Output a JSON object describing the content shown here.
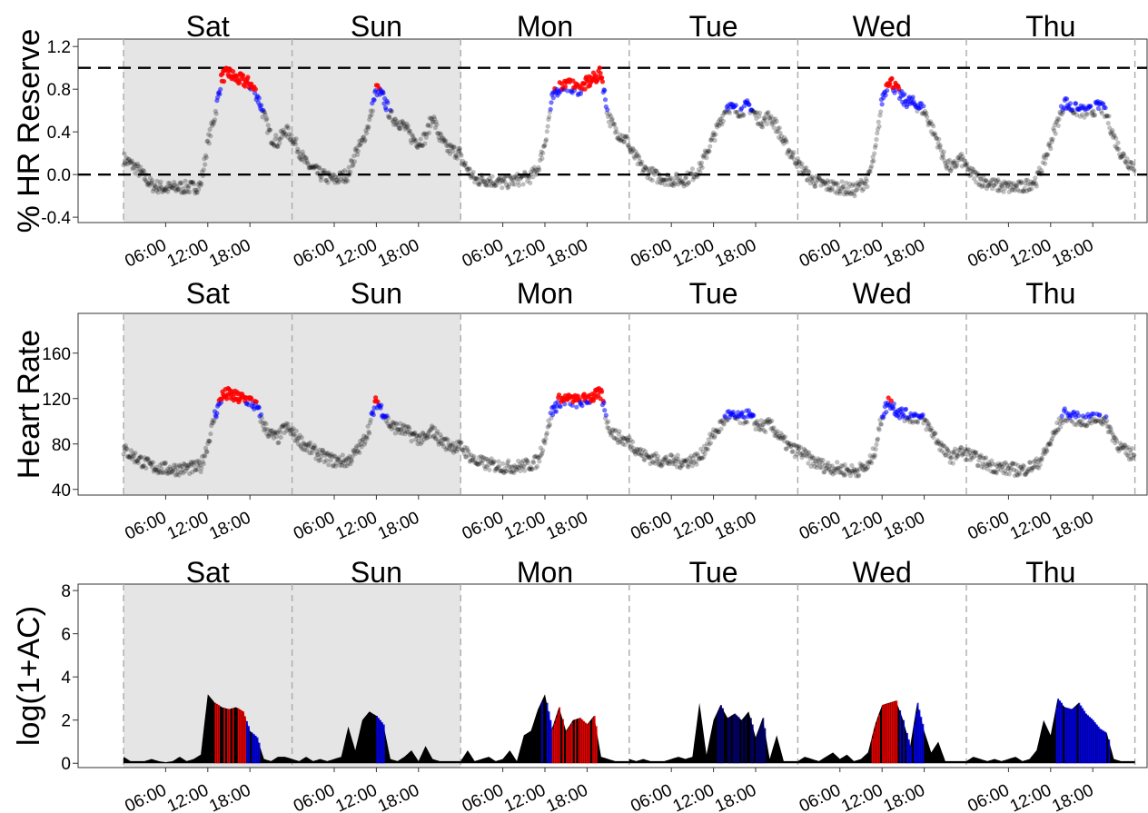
{
  "colors": {
    "weekend_shade": "#e5e5e5",
    "points_low": "#000000",
    "points_mid": "#0000ff",
    "points_high": "#ff0000",
    "day_divider": "#aaaaaa"
  },
  "days": [
    "Sat",
    "Sun",
    "Mon",
    "Tue",
    "Wed",
    "Thu"
  ],
  "weekend_days": [
    "Sat",
    "Sun"
  ],
  "time_ticks": [
    "06:00",
    "12:00",
    "18:00"
  ],
  "chart_data": [
    {
      "type": "scatter",
      "ylabel": "% HR Reserve",
      "ylim": [
        -0.45,
        1.27
      ],
      "yticks": [
        "-0.4",
        "0.0",
        "0.4",
        "0.8",
        "1.2"
      ],
      "ytick_values": [
        -0.4,
        0.0,
        0.4,
        0.8,
        1.2
      ],
      "reference_lines": [
        0.0,
        1.0
      ],
      "color_thresholds": {
        "mid": 0.6,
        "high": 0.8
      },
      "series": [
        {
          "day": "Sat",
          "x_hours": [
            0,
            2,
            4,
            6,
            8,
            10,
            11,
            12,
            13,
            14,
            15,
            16,
            17,
            18,
            19,
            20,
            21,
            22,
            23,
            24
          ],
          "y": [
            0.15,
            0.05,
            -0.1,
            -0.13,
            -0.12,
            -0.12,
            -0.1,
            0.3,
            0.55,
            0.92,
            0.95,
            0.9,
            0.88,
            0.85,
            0.75,
            0.55,
            0.35,
            0.3,
            0.42,
            0.35
          ]
        },
        {
          "day": "Sun",
          "x_hours": [
            0,
            2,
            4,
            6,
            8,
            9,
            10,
            11,
            12,
            13,
            14,
            15,
            16,
            17,
            18,
            19,
            20,
            21,
            22,
            23,
            24
          ],
          "y": [
            0.35,
            0.1,
            0.0,
            -0.05,
            0.0,
            0.2,
            0.3,
            0.5,
            0.8,
            0.72,
            0.55,
            0.5,
            0.45,
            0.35,
            0.3,
            0.35,
            0.55,
            0.35,
            0.25,
            0.22,
            0.2
          ]
        },
        {
          "day": "Mon",
          "x_hours": [
            0,
            2,
            4,
            6,
            8,
            10,
            11,
            12,
            13,
            14,
            15,
            16,
            17,
            18,
            19,
            20,
            21,
            22,
            23,
            24
          ],
          "y": [
            0.15,
            -0.05,
            -0.05,
            -0.08,
            -0.05,
            -0.02,
            0.05,
            0.3,
            0.7,
            0.82,
            0.85,
            0.82,
            0.8,
            0.86,
            0.9,
            0.95,
            0.55,
            0.42,
            0.35,
            0.3
          ]
        },
        {
          "day": "Tue",
          "x_hours": [
            0,
            2,
            4,
            6,
            8,
            10,
            11,
            12,
            13,
            14,
            15,
            16,
            17,
            18,
            19,
            20,
            21,
            22,
            23,
            24
          ],
          "y": [
            0.25,
            0.05,
            -0.02,
            -0.05,
            -0.05,
            0.05,
            0.2,
            0.35,
            0.5,
            0.65,
            0.6,
            0.6,
            0.65,
            0.55,
            0.5,
            0.55,
            0.45,
            0.3,
            0.2,
            0.12
          ]
        },
        {
          "day": "Wed",
          "x_hours": [
            0,
            2,
            4,
            6,
            8,
            10,
            11,
            12,
            13,
            14,
            15,
            16,
            17,
            18,
            19,
            20,
            21,
            22,
            23,
            24
          ],
          "y": [
            0.1,
            -0.05,
            -0.1,
            -0.12,
            -0.15,
            -0.05,
            0.2,
            0.7,
            0.9,
            0.8,
            0.7,
            0.68,
            0.65,
            0.6,
            0.45,
            0.3,
            0.12,
            0.05,
            0.15,
            0.1
          ]
        },
        {
          "day": "Thu",
          "x_hours": [
            0,
            2,
            4,
            6,
            8,
            10,
            11,
            12,
            13,
            14,
            15,
            16,
            17,
            18,
            19,
            20,
            21,
            22,
            23,
            24
          ],
          "y": [
            0.05,
            -0.05,
            -0.1,
            -0.12,
            -0.12,
            -0.05,
            0.1,
            0.3,
            0.5,
            0.68,
            0.62,
            0.6,
            0.58,
            0.6,
            0.65,
            0.55,
            0.35,
            0.2,
            0.12,
            0.08
          ]
        }
      ]
    },
    {
      "type": "scatter",
      "ylabel": "Heart Rate",
      "ylim": [
        35,
        195
      ],
      "yticks": [
        "40",
        "80",
        "120",
        "160"
      ],
      "ytick_values": [
        40,
        80,
        120,
        160
      ],
      "reference_lines": [],
      "color_thresholds": {
        "mid": 103,
        "high": 117
      },
      "series": [
        {
          "day": "Sat",
          "x_hours": [
            0,
            2,
            4,
            6,
            8,
            10,
            11,
            12,
            13,
            14,
            15,
            16,
            17,
            18,
            19,
            20,
            21,
            22,
            23,
            24
          ],
          "y": [
            75,
            67,
            60,
            58,
            58,
            59,
            60,
            80,
            105,
            122,
            124,
            121,
            120,
            118,
            112,
            96,
            88,
            85,
            95,
            90
          ]
        },
        {
          "day": "Sun",
          "x_hours": [
            0,
            2,
            4,
            6,
            8,
            9,
            10,
            11,
            12,
            13,
            14,
            15,
            16,
            17,
            18,
            19,
            20,
            21,
            22,
            23,
            24
          ],
          "y": [
            90,
            78,
            70,
            65,
            65,
            72,
            80,
            95,
            118,
            108,
            96,
            94,
            92,
            88,
            85,
            84,
            92,
            84,
            80,
            78,
            77
          ]
        },
        {
          "day": "Mon",
          "x_hours": [
            0,
            2,
            4,
            6,
            8,
            10,
            11,
            12,
            13,
            14,
            15,
            16,
            17,
            18,
            19,
            20,
            21,
            22,
            23,
            24
          ],
          "y": [
            78,
            65,
            62,
            60,
            60,
            62,
            65,
            85,
            108,
            118,
            119,
            118,
            117,
            120,
            122,
            124,
            96,
            88,
            84,
            82
          ]
        },
        {
          "day": "Tue",
          "x_hours": [
            0,
            2,
            4,
            6,
            8,
            10,
            11,
            12,
            13,
            14,
            15,
            16,
            17,
            18,
            19,
            20,
            21,
            22,
            23,
            24
          ],
          "y": [
            82,
            70,
            66,
            65,
            64,
            68,
            78,
            88,
            96,
            105,
            103,
            102,
            105,
            98,
            95,
            97,
            90,
            82,
            76,
            73
          ]
        },
        {
          "day": "Wed",
          "x_hours": [
            0,
            2,
            4,
            6,
            8,
            10,
            11,
            12,
            13,
            14,
            15,
            16,
            17,
            18,
            19,
            20,
            21,
            22,
            23,
            24
          ],
          "y": [
            75,
            65,
            60,
            58,
            56,
            60,
            75,
            105,
            118,
            110,
            106,
            104,
            104,
            100,
            92,
            82,
            72,
            68,
            74,
            70
          ]
        },
        {
          "day": "Thu",
          "x_hours": [
            0,
            2,
            4,
            6,
            8,
            10,
            11,
            12,
            13,
            14,
            15,
            16,
            17,
            18,
            19,
            20,
            21,
            22,
            23,
            24
          ],
          "y": [
            72,
            65,
            60,
            58,
            57,
            62,
            70,
            82,
            95,
            106,
            103,
            102,
            100,
            102,
            104,
            98,
            86,
            76,
            72,
            70
          ]
        }
      ]
    },
    {
      "type": "area",
      "ylabel": "log(1+AC)",
      "ylim": [
        -0.2,
        8.3
      ],
      "yticks": [
        "0",
        "2",
        "4",
        "6",
        "8"
      ],
      "ytick_values": [
        0,
        2,
        4,
        6,
        8
      ],
      "reference_lines": [],
      "series": [
        {
          "day": "Sat",
          "x_hours": [
            0,
            1,
            2,
            3,
            4,
            5,
            6,
            7,
            8,
            9,
            10,
            11,
            12,
            13,
            14,
            15,
            16,
            17,
            18,
            19,
            20,
            21,
            22,
            23,
            24
          ],
          "y": [
            0.3,
            0.1,
            0.1,
            0.1,
            0.2,
            0.1,
            0.05,
            0.1,
            0.3,
            0.1,
            0.2,
            0.4,
            3.2,
            2.8,
            2.6,
            2.5,
            2.6,
            2.4,
            1.5,
            1.2,
            0.2,
            0.1,
            0.3,
            0.3,
            0.2
          ],
          "bands": [
            {
              "from": 12.5,
              "to": 17.5,
              "color": "#ff0000"
            },
            {
              "from": 17.5,
              "to": 19.5,
              "color": "#0000ff"
            }
          ]
        },
        {
          "day": "Sun",
          "x_hours": [
            0,
            1,
            2,
            3,
            4,
            5,
            6,
            7,
            8,
            9,
            10,
            11,
            12,
            13,
            14,
            15,
            16,
            17,
            18,
            19,
            20,
            21,
            22,
            23,
            24
          ],
          "y": [
            0.2,
            0.1,
            0.3,
            0.1,
            0.2,
            0.1,
            0.2,
            0.3,
            1.7,
            0.6,
            2.0,
            2.4,
            2.2,
            1.8,
            0.2,
            0.1,
            0.3,
            0.6,
            0.1,
            0.8,
            0.2,
            0.1,
            0.1,
            0.1,
            0.1
          ],
          "bands": [
            {
              "from": 12.0,
              "to": 13.5,
              "color": "#0000ff"
            }
          ]
        },
        {
          "day": "Mon",
          "x_hours": [
            0,
            1,
            2,
            3,
            4,
            5,
            6,
            7,
            8,
            9,
            10,
            11,
            12,
            13,
            14,
            15,
            16,
            17,
            18,
            19,
            20,
            21,
            22,
            23,
            24
          ],
          "y": [
            0.1,
            0.6,
            0.1,
            0.2,
            0.3,
            0.1,
            0.2,
            0.6,
            0.1,
            1.3,
            1.5,
            2.5,
            3.2,
            1.6,
            2.6,
            1.5,
            2.0,
            2.1,
            1.8,
            2.2,
            0.3,
            0.2,
            0.1,
            0.1,
            0.1
          ],
          "bands": [
            {
              "from": 11.5,
              "to": 13.0,
              "color": "#0000ff"
            },
            {
              "from": 13.0,
              "to": 20.0,
              "color": "#ff0000"
            }
          ]
        },
        {
          "day": "Tue",
          "x_hours": [
            0,
            1,
            2,
            3,
            4,
            5,
            6,
            7,
            8,
            9,
            10,
            11,
            12,
            13,
            14,
            15,
            16,
            17,
            18,
            19,
            20,
            21,
            22,
            23,
            24
          ],
          "y": [
            0.2,
            0.1,
            0.2,
            0.1,
            0.1,
            0.1,
            0.2,
            0.3,
            0.2,
            0.3,
            2.8,
            0.4,
            2.0,
            2.7,
            2.1,
            2.3,
            2.0,
            2.4,
            1.2,
            2.1,
            0.2,
            1.3,
            0.1,
            0.1,
            0.1
          ],
          "bands": [
            {
              "from": 12.0,
              "to": 19.5,
              "color": "#00007a"
            }
          ]
        },
        {
          "day": "Wed",
          "x_hours": [
            0,
            1,
            2,
            3,
            4,
            5,
            6,
            7,
            8,
            9,
            10,
            11,
            12,
            13,
            14,
            15,
            16,
            17,
            18,
            19,
            20,
            21,
            22,
            23,
            24
          ],
          "y": [
            0.1,
            0.3,
            0.2,
            0.1,
            0.3,
            0.5,
            0.2,
            0.4,
            0.1,
            0.2,
            0.5,
            1.8,
            2.7,
            2.8,
            2.9,
            2.0,
            0.8,
            2.8,
            1.5,
            0.5,
            1.0,
            0.1,
            0.1,
            0.1,
            0.1
          ],
          "bands": [
            {
              "from": 10.5,
              "to": 14.5,
              "color": "#ff0000"
            },
            {
              "from": 14.5,
              "to": 18.0,
              "color": "#0000ff"
            }
          ]
        },
        {
          "day": "Thu",
          "x_hours": [
            0,
            1,
            2,
            3,
            4,
            5,
            6,
            7,
            8,
            9,
            10,
            11,
            12,
            13,
            14,
            15,
            16,
            17,
            18,
            19,
            20,
            21,
            22,
            23,
            24
          ],
          "y": [
            0.1,
            0.3,
            0.2,
            0.1,
            0.2,
            0.1,
            0.2,
            0.3,
            0.1,
            0.2,
            0.6,
            2.0,
            1.3,
            3.0,
            2.6,
            2.5,
            2.8,
            2.3,
            2.0,
            1.6,
            1.4,
            0.2,
            0.1,
            0.1,
            0.1
          ],
          "bands": [
            {
              "from": 12.5,
              "to": 20.5,
              "color": "#0000ff"
            }
          ]
        }
      ]
    }
  ]
}
